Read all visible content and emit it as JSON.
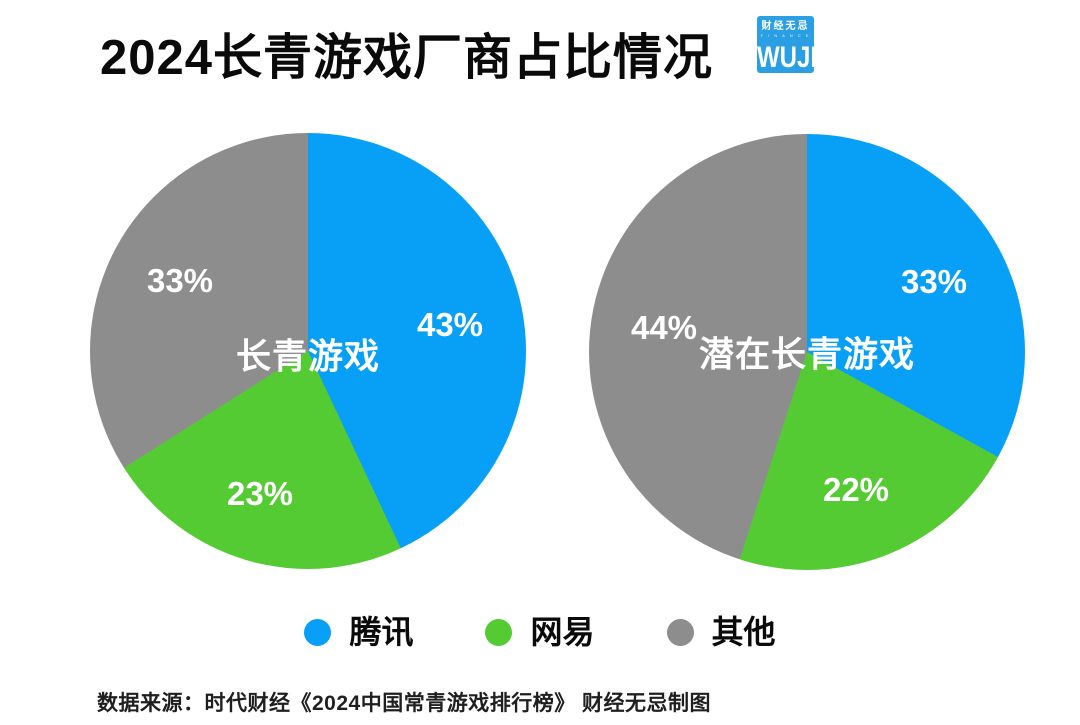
{
  "page": {
    "title": "2024长青游戏厂商占比情况",
    "background": "#ffffff"
  },
  "logo": {
    "name_cn": "财经无忌",
    "subtext": "F I N A N C E",
    "name_en": "WUJI",
    "color": "#2a9fe3"
  },
  "colors": {
    "tencent_blue": "#08a0f7",
    "netease_green": "#55cb33",
    "others_gray": "#8d8d8d",
    "label_white": "#ffffff"
  },
  "chart_data": [
    {
      "type": "pie",
      "center_label": "长青游戏",
      "categories": [
        "腾讯",
        "网易",
        "其他"
      ],
      "values": [
        43,
        23,
        33
      ],
      "labels": [
        "43%",
        "23%",
        "33%"
      ],
      "colors": [
        "#08a0f7",
        "#55cb33",
        "#8d8d8d"
      ],
      "start_angle_deg": 0,
      "direction": "clockwise",
      "legend_position": "bottom"
    },
    {
      "type": "pie",
      "center_label": "潜在长青游戏",
      "categories": [
        "腾讯",
        "网易",
        "其他"
      ],
      "values": [
        33,
        22,
        44
      ],
      "labels": [
        "33%",
        "22%",
        "44%"
      ],
      "colors": [
        "#08a0f7",
        "#55cb33",
        "#8d8d8d"
      ],
      "start_angle_deg": 0,
      "direction": "clockwise",
      "legend_position": "bottom"
    }
  ],
  "legend": [
    {
      "label": "腾讯",
      "color": "#08a0f7"
    },
    {
      "label": "网易",
      "color": "#55cb33"
    },
    {
      "label": "其他",
      "color": "#8d8d8d"
    }
  ],
  "footer": {
    "text": "数据来源：时代财经《2024中国常青游戏排行榜》 财经无忌制图"
  }
}
